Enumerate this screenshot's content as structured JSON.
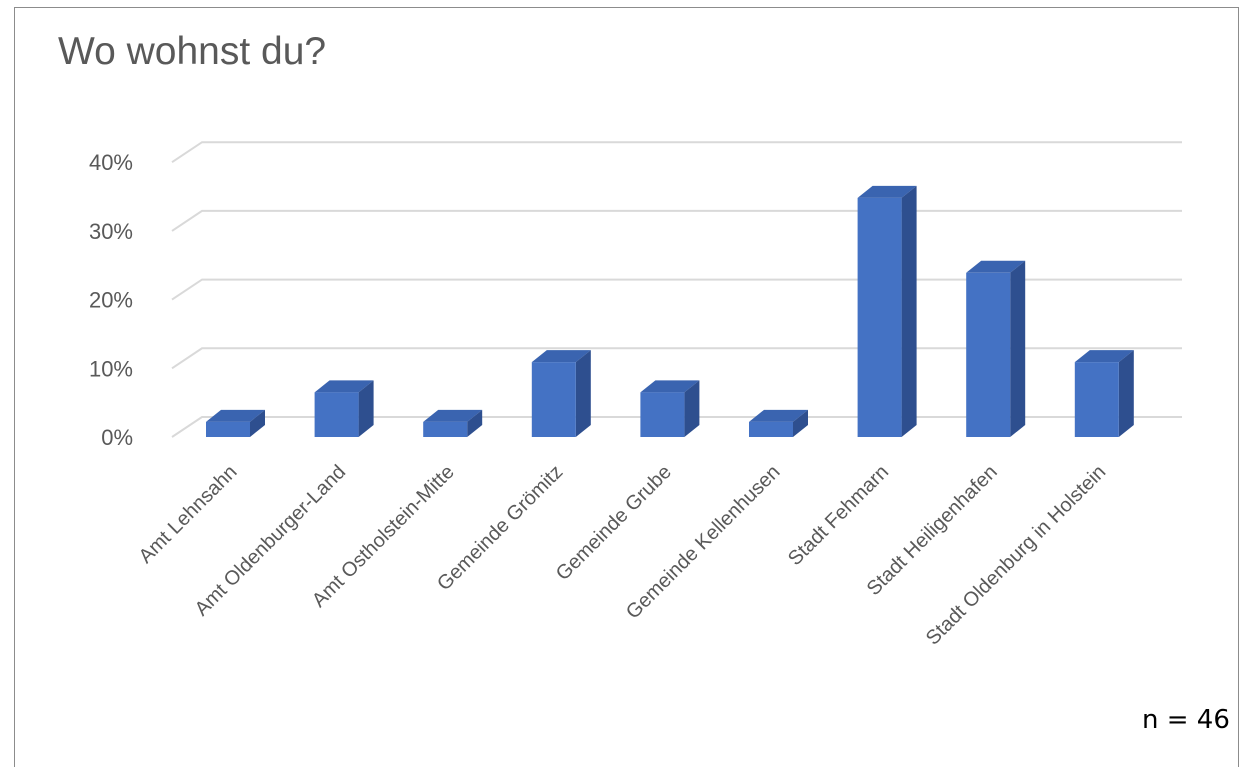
{
  "title": "Wo wohnst du?",
  "note": "n = 46",
  "colors": {
    "bar_front": "#4472c4",
    "bar_side": "#2e4f8f",
    "bar_top": "#3a64b0",
    "grid": "#d9d9d9",
    "text": "#595959"
  },
  "chart_data": {
    "type": "bar",
    "style": "3d-column",
    "title": "Wo wohnst du?",
    "xlabel": "",
    "ylabel": "",
    "ylim": [
      0,
      0.4
    ],
    "yticks": [
      0,
      0.1,
      0.2,
      0.3,
      0.4
    ],
    "ytick_labels": [
      "0%",
      "10%",
      "20%",
      "30%",
      "40%"
    ],
    "grid": true,
    "categories": [
      "Amt Lehnsahn",
      "Amt Oldenburger-Land",
      "Amt Ostholstein-Mitte",
      "Gemeinde Grömitz",
      "Gemeinde Grube",
      "Gemeinde Kellenhusen",
      "Stadt Fehmarn",
      "Stadt Heiligenhafen",
      "Stadt Oldenburg in Holstein"
    ],
    "values": [
      0.022,
      0.065,
      0.022,
      0.109,
      0.065,
      0.022,
      0.348,
      0.239,
      0.109
    ]
  }
}
